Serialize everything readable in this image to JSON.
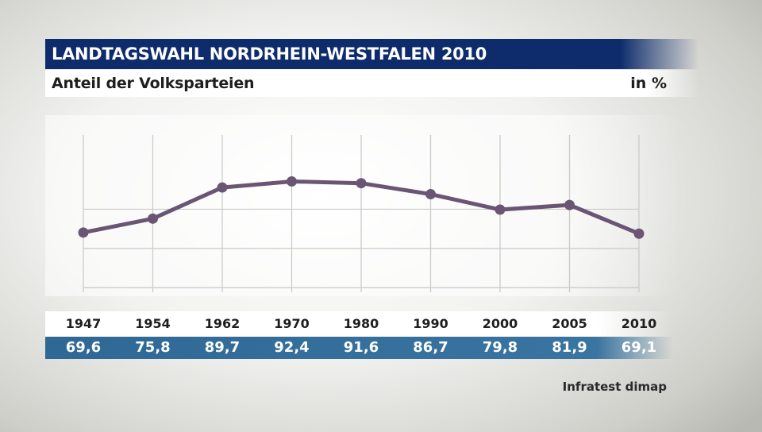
{
  "header": {
    "title": "LANDTAGSWAHL NORDRHEIN-WESTFALEN 2010",
    "subtitle": "Anteil der Volksparteien",
    "unit": "in %"
  },
  "source": "Infratest dimap",
  "colors": {
    "title_bar": "#0e2c6c",
    "line": "#6a5574",
    "value_row": "#2f6894"
  },
  "chart_data": {
    "type": "line",
    "categories": [
      "1947",
      "1954",
      "1962",
      "1970",
      "1980",
      "1990",
      "2000",
      "2005",
      "2010"
    ],
    "values": [
      69.6,
      75.8,
      89.7,
      92.4,
      91.6,
      86.7,
      79.8,
      81.9,
      69.1
    ],
    "value_labels": [
      "69,6",
      "75,8",
      "89,7",
      "92,4",
      "91,6",
      "86,7",
      "79,8",
      "81,9",
      "69,1"
    ],
    "ylim": [
      0,
      100
    ],
    "grid": true,
    "legend": "none"
  }
}
